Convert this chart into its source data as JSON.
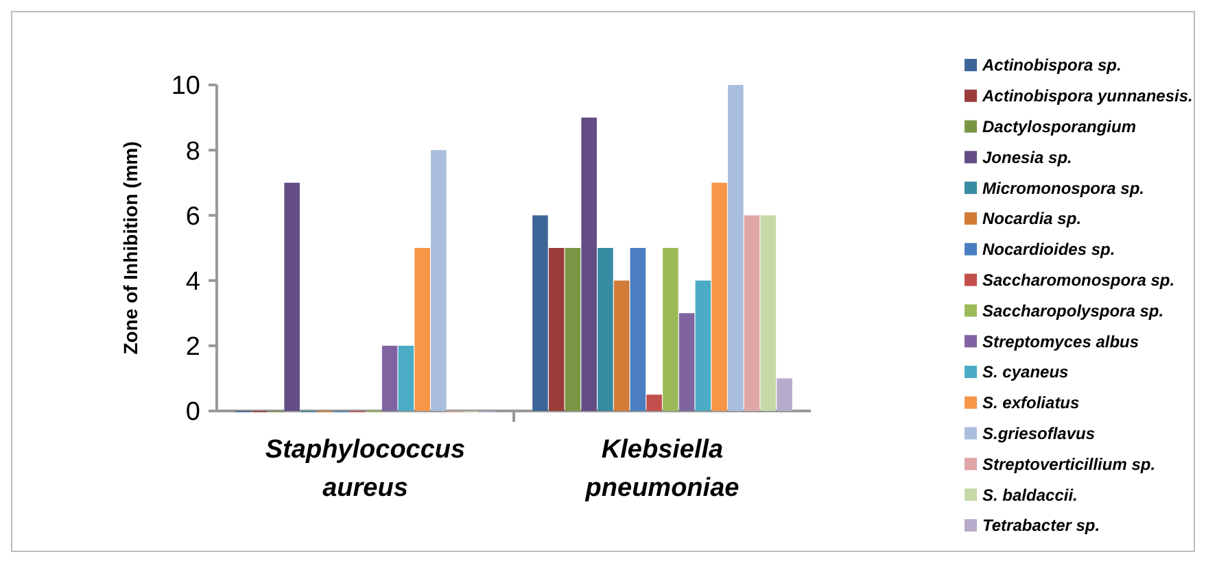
{
  "chart_data": {
    "type": "bar",
    "ylabel": "Zone of Inhibition (mm)",
    "categories": [
      "Staphylococcus aureus",
      "Klebsiella pneumoniae"
    ],
    "ylim": [
      0,
      10
    ],
    "yticks": [
      0,
      2,
      4,
      6,
      8,
      10
    ],
    "grid": false,
    "legend": "right",
    "series": [
      {
        "name": "Actinobispora sp.",
        "color": "#3c6598",
        "values": [
          0,
          6
        ]
      },
      {
        "name": "Actinobispora yunnanesis.",
        "color": "#9a3c3a",
        "values": [
          0,
          5
        ]
      },
      {
        "name": "Dactylosporangium",
        "color": "#7a9544",
        "values": [
          0,
          5
        ]
      },
      {
        "name": "Jonesia sp.",
        "color": "#644d84",
        "values": [
          7,
          9
        ]
      },
      {
        "name": "Micromonospora sp.",
        "color": "#378ba2",
        "values": [
          0,
          5
        ]
      },
      {
        "name": "Nocardia sp.",
        "color": "#d27c37",
        "values": [
          0,
          4
        ]
      },
      {
        "name": "Nocardioides sp.",
        "color": "#4a7ec0",
        "values": [
          0,
          5
        ]
      },
      {
        "name": "Saccharomonospora sp.",
        "color": "#c24f4c",
        "values": [
          0,
          0.5
        ]
      },
      {
        "name": "Saccharopolyspora sp.",
        "color": "#9cbb58",
        "values": [
          0,
          5
        ]
      },
      {
        "name": "Streptomyces albus",
        "color": "#8064a2",
        "values": [
          2,
          3
        ]
      },
      {
        "name": "S. cyaneus",
        "color": "#4bacc6",
        "values": [
          2,
          4
        ]
      },
      {
        "name": "S. exfoliatus",
        "color": "#f79646",
        "values": [
          5,
          7
        ]
      },
      {
        "name": "S.griesoflavus",
        "color": "#a9bddd",
        "values": [
          8,
          10
        ]
      },
      {
        "name": "Streptoverticillium sp.",
        "color": "#dfa7a6",
        "values": [
          0,
          6
        ]
      },
      {
        "name": "S. baldaccii.",
        "color": "#c5d8a6",
        "values": [
          0,
          6
        ]
      },
      {
        "name": "Tetrabacter sp.",
        "color": "#b7abcb",
        "values": [
          0,
          1
        ]
      }
    ]
  }
}
